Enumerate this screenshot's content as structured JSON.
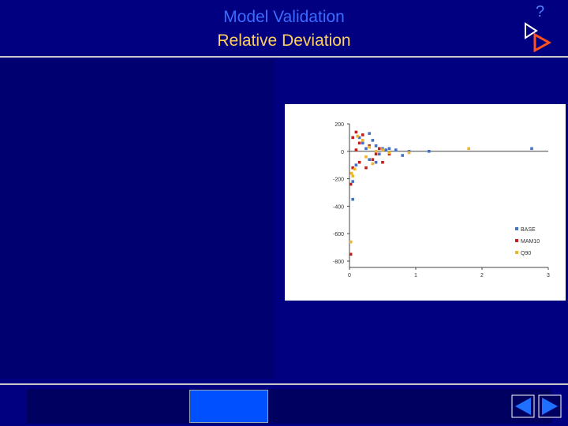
{
  "header": {
    "title": "Model Validation",
    "subtitle": "Relative Deviation",
    "help": "?"
  },
  "chart_data": {
    "type": "scatter",
    "xlim": [
      0,
      3
    ],
    "xticks": [
      0,
      1,
      2,
      3
    ],
    "ylim": [
      -800,
      200
    ],
    "yticks": [
      200,
      0,
      -200,
      -400,
      -600,
      -800
    ],
    "legend": "lower right",
    "series": [
      {
        "name": "BASE",
        "color": "#4472c4",
        "x": [
          0.05,
          0.15,
          0.2,
          0.25,
          0.3,
          0.35,
          0.4,
          0.45,
          0.5,
          0.55,
          0.6,
          0.7,
          0.8,
          0.9,
          1.2,
          2.75,
          0.1,
          0.3,
          0.4,
          0.05
        ],
        "values": [
          -350,
          100,
          60,
          20,
          130,
          80,
          40,
          -20,
          20,
          10,
          20,
          10,
          -30,
          0,
          0,
          20,
          -100,
          -60,
          -80,
          -220
        ]
      },
      {
        "name": "MAM10",
        "color": "#c0201c",
        "x": [
          0.02,
          0.05,
          0.1,
          0.15,
          0.2,
          0.3,
          0.35,
          0.4,
          0.5,
          0.25,
          0.05,
          0.6,
          0.15,
          0.45,
          0.02,
          0.1
        ],
        "values": [
          -750,
          100,
          140,
          60,
          120,
          40,
          -60,
          -20,
          -80,
          -120,
          -120,
          -20,
          -80,
          20,
          -240,
          10
        ]
      },
      {
        "name": "Q90",
        "color": "#f0b428",
        "x": [
          0.02,
          0.05,
          0.08,
          0.12,
          0.2,
          0.3,
          0.4,
          0.5,
          0.6,
          0.9,
          1.8,
          0.25,
          0.35,
          0.03
        ],
        "values": [
          -660,
          -180,
          -130,
          110,
          80,
          30,
          0,
          10,
          -10,
          -10,
          20,
          -40,
          -90,
          -160
        ]
      }
    ]
  }
}
